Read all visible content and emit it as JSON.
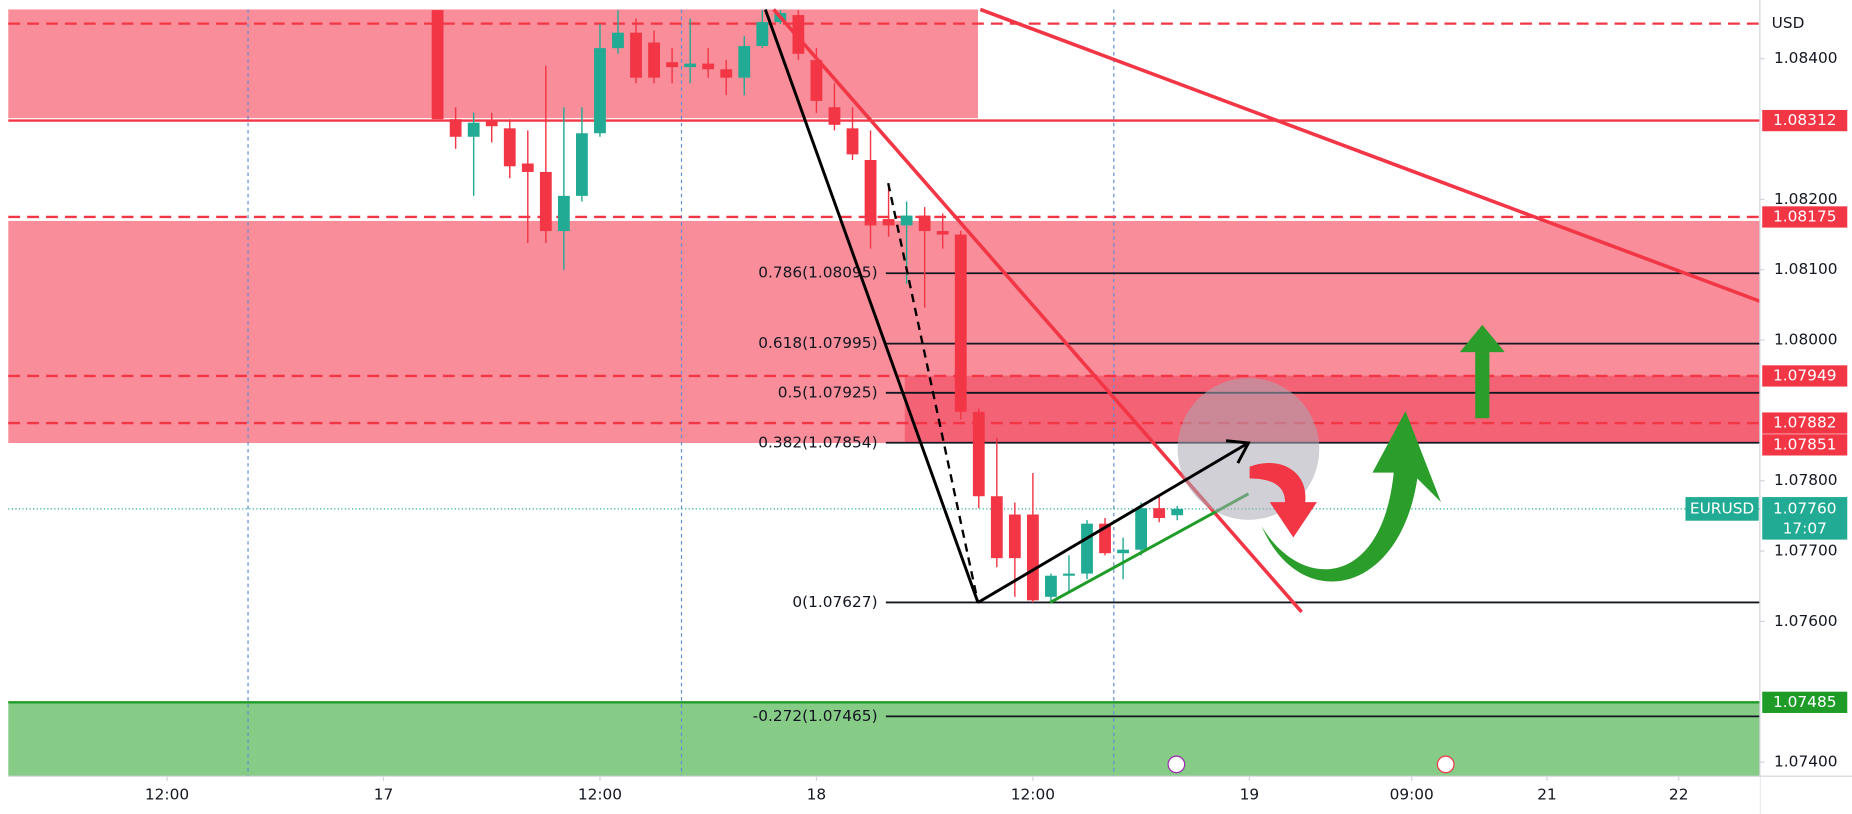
{
  "chart_data": {
    "type": "candlestick",
    "symbol": "EURUSD",
    "currency": "USD",
    "countdown": "17:07",
    "x": [
      27,
      28,
      29,
      30,
      31,
      32,
      33,
      34,
      35,
      36,
      37,
      38,
      39,
      40,
      41,
      42,
      43,
      44,
      45,
      46,
      47,
      48,
      49,
      50,
      51,
      52,
      53,
      54,
      55,
      56,
      57,
      58,
      59,
      60,
      61,
      62,
      63,
      64,
      65,
      66,
      67,
      68
    ],
    "open": [
      1.08469,
      1.08314,
      1.08289,
      1.08311,
      1.08301,
      1.08251,
      1.08239,
      1.08155,
      1.08205,
      1.08294,
      1.08415,
      1.08437,
      1.08423,
      1.08395,
      1.08388,
      1.08393,
      1.08385,
      1.08373,
      1.08418,
      1.08452,
      1.08462,
      1.08398,
      1.08331,
      1.08301,
      1.08256,
      1.08172,
      1.08163,
      1.08177,
      1.08155,
      1.0815,
      1.07898,
      1.07778,
      1.07752,
      1.07752,
      1.07635,
      1.07665,
      1.07668,
      1.07739,
      1.07697,
      1.07702,
      1.07761,
      1.07751
    ],
    "high": [
      1.08469,
      1.08331,
      1.08323,
      1.08323,
      1.08314,
      1.08298,
      1.0839,
      1.08331,
      1.08331,
      1.08449,
      1.08469,
      1.08457,
      1.0844,
      1.08415,
      1.08457,
      1.08415,
      1.08398,
      1.08432,
      1.08469,
      1.08469,
      1.08469,
      1.08415,
      1.08365,
      1.08331,
      1.08298,
      1.08222,
      1.08197,
      1.08189,
      1.0818,
      1.08155,
      1.07903,
      1.07861,
      1.07769,
      1.07811,
      1.07668,
      1.07694,
      1.07744,
      1.07747,
      1.07719,
      1.07769,
      1.07778,
      1.07764
    ],
    "low": [
      1.08314,
      1.08272,
      1.08205,
      1.08281,
      1.0823,
      1.08138,
      1.08138,
      1.081,
      1.08197,
      1.08289,
      1.08407,
      1.08365,
      1.08365,
      1.08365,
      1.08365,
      1.08373,
      1.08348,
      1.08348,
      1.08415,
      1.08449,
      1.08398,
      1.08323,
      1.08298,
      1.08256,
      1.0813,
      1.08147,
      1.0808,
      1.08046,
      1.0813,
      1.07887,
      1.07761,
      1.07677,
      1.07635,
      1.07627,
      1.07627,
      1.07643,
      1.0766,
      1.07694,
      1.0766,
      1.07694,
      1.07741,
      1.07744
    ],
    "close": [
      1.08314,
      1.08289,
      1.08309,
      1.08304,
      1.08247,
      1.08239,
      1.08155,
      1.08205,
      1.08294,
      1.08415,
      1.08437,
      1.08373,
      1.08373,
      1.08388,
      1.08393,
      1.08385,
      1.08373,
      1.08418,
      1.08452,
      1.08465,
      1.08407,
      1.0834,
      1.08306,
      1.08264,
      1.08163,
      1.08163,
      1.08177,
      1.08155,
      1.0815,
      1.07898,
      1.07778,
      1.0769,
      1.0769,
      1.0763,
      1.07665,
      1.07668,
      1.07739,
      1.07697,
      1.07702,
      1.07761,
      1.07747,
      1.0776
    ],
    "colors": {
      "up": "#22ab94",
      "down": "#f23645"
    },
    "xlim": [
      3.2,
      100.3
    ],
    "xticks": [
      {
        "value": 12,
        "label": "12:00"
      },
      {
        "value": 24,
        "label": "17"
      },
      {
        "value": 36,
        "label": "12:00"
      },
      {
        "value": 48,
        "label": "18"
      },
      {
        "value": 60,
        "label": "12:00"
      },
      {
        "value": 72,
        "label": "19"
      },
      {
        "value": 81,
        "label": "09:00"
      },
      {
        "value": 88.5,
        "label": "21"
      },
      {
        "value": 95.8,
        "label": "22"
      }
    ],
    "ylim": [
      1.0738,
      1.0847
    ],
    "yticks": [
      {
        "value": 1.084,
        "label": "1.08400"
      },
      {
        "value": 1.082,
        "label": "1.08200"
      },
      {
        "value": 1.081,
        "label": "1.08100"
      },
      {
        "value": 1.08,
        "label": "1.08000"
      },
      {
        "value": 1.078,
        "label": "1.07800"
      },
      {
        "value": 1.077,
        "label": "1.07700"
      },
      {
        "value": 1.076,
        "label": "1.07600"
      },
      {
        "value": 1.074,
        "label": "1.07400"
      }
    ],
    "levels": [
      {
        "value": 1.08312,
        "label": "1.08312",
        "color": "#f23645",
        "style": "solid"
      },
      {
        "value": 1.08175,
        "label": "1.08175",
        "color": "#f23645",
        "style": "dashed"
      },
      {
        "value": 1.07949,
        "label": "1.07949",
        "color": "#f23645",
        "style": "dashed"
      },
      {
        "value": 1.07882,
        "label": "1.07882",
        "color": "#f23645",
        "style": "dashed"
      },
      {
        "value": 1.07851,
        "label": "1.07851",
        "color": "#f23645",
        "style": "none"
      },
      {
        "value": 1.07485,
        "label": "1.07485",
        "color": "#1f9c28",
        "style": "solid"
      }
    ],
    "fib_levels": [
      {
        "value": 1.08095,
        "label": "0.786(1.08095)"
      },
      {
        "value": 1.07995,
        "label": "0.618(1.07995)"
      },
      {
        "value": 1.07925,
        "label": "0.5(1.07925)"
      },
      {
        "value": 1.07854,
        "label": "0.382(1.07854)"
      },
      {
        "value": 1.07627,
        "label": "0(1.07627)"
      },
      {
        "value": 1.07465,
        "label": "-0.272(1.07465)"
      }
    ],
    "last_price": {
      "value": 1.0776,
      "label": "1.07760"
    }
  }
}
